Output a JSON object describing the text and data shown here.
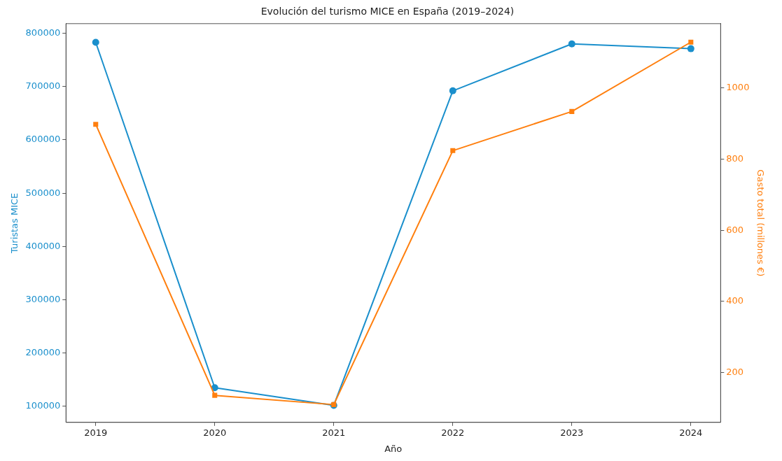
{
  "chart_data": {
    "type": "line",
    "title": "Evolución del turismo MICE en España (2019–2024)",
    "xlabel": "Año",
    "ylabel": "Turistas MICE",
    "y2label": "Gasto total (millones €)",
    "x": [
      2019,
      2020,
      2021,
      2022,
      2023,
      2024
    ],
    "xlim": [
      2018.75,
      2024.25
    ],
    "xticks": [
      2019,
      2020,
      2021,
      2022,
      2023,
      2024
    ],
    "ylim": [
      70000,
      818000
    ],
    "yticks": [
      100000,
      200000,
      300000,
      400000,
      500000,
      600000,
      700000,
      800000
    ],
    "y2lim": [
      60,
      1181
    ],
    "y2ticks": [
      200,
      400,
      600,
      800,
      1000
    ],
    "series": [
      {
        "color": "#1a8fcc",
        "marker": "circle",
        "values": [
          783000,
          135000,
          102000,
          692000,
          780000,
          771000
        ]
      },
      {
        "color": "#ff7f0e",
        "marker": "square",
        "axis": "y2",
        "values": [
          898,
          136,
          110,
          824,
          934,
          1129
        ]
      }
    ],
    "grid": false,
    "legend": false,
    "line_style": "solid"
  }
}
